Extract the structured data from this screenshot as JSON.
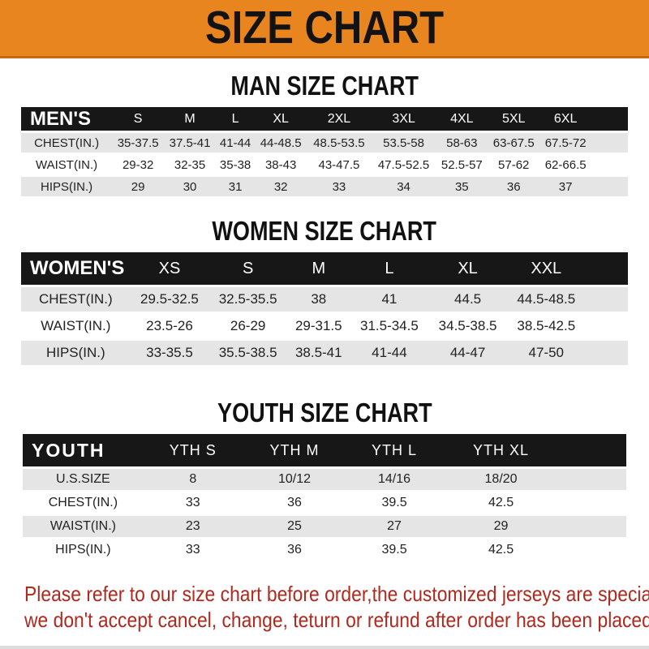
{
  "banner": {
    "title": "SIZE CHART"
  },
  "sections": [
    {
      "id": "men",
      "title": "MAN SIZE CHART",
      "table": {
        "header_label": "MEN'S",
        "columns": [
          "S",
          "M",
          "L",
          "XL",
          "2XL",
          "3XL",
          "4XL",
          "5XL",
          "6XL"
        ],
        "rows": [
          {
            "label": "CHEST(IN.)",
            "values": [
              "35-37.5",
              "37.5-41",
              "41-44",
              "44-48.5",
              "48.5-53.5",
              "53.5-58",
              "58-63",
              "63-67.5",
              "67.5-72"
            ]
          },
          {
            "label": "WAIST(IN.)",
            "values": [
              "29-32",
              "32-35",
              "35-38",
              "38-43",
              "43-47.5",
              "47.5-52.5",
              "52.5-57",
              "57-62",
              "62-66.5"
            ]
          },
          {
            "label": "HIPS(IN.)",
            "values": [
              "29",
              "30",
              "31",
              "32",
              "33",
              "34",
              "35",
              "36",
              "37"
            ]
          }
        ]
      }
    },
    {
      "id": "women",
      "title": "WOMEN SIZE CHART",
      "table": {
        "header_label": "WOMEN'S",
        "columns": [
          "XS",
          "S",
          "M",
          "L",
          "XL",
          "XXL"
        ],
        "rows": [
          {
            "label": "CHEST(IN.)",
            "values": [
              "29.5-32.5",
              "32.5-35.5",
              "38",
              "41",
              "44.5",
              "44.5-48.5"
            ]
          },
          {
            "label": "WAIST(IN.)",
            "values": [
              "23.5-26",
              "26-29",
              "29-31.5",
              "31.5-34.5",
              "34.5-38.5",
              "38.5-42.5"
            ]
          },
          {
            "label": "HIPS(IN.)",
            "values": [
              "33-35.5",
              "35.5-38.5",
              "38.5-41",
              "41-44",
              "44-47",
              "47-50"
            ]
          }
        ]
      }
    },
    {
      "id": "youth",
      "title": "YOUTH SIZE CHART",
      "table": {
        "header_label": "YOUTH",
        "columns": [
          "YTH S",
          "YTH M",
          "YTH L",
          "YTH XL"
        ],
        "rows": [
          {
            "label": "U.S.SIZE",
            "values": [
              "8",
              "10/12",
              "14/16",
              "18/20"
            ]
          },
          {
            "label": "CHEST(IN.)",
            "values": [
              "33",
              "36",
              "39.5",
              "42.5"
            ]
          },
          {
            "label": "WAIST(IN.)",
            "values": [
              "23",
              "25",
              "27",
              "29"
            ]
          },
          {
            "label": "HIPS(IN.)",
            "values": [
              "33",
              "36",
              "39.5",
              "42.5"
            ]
          }
        ]
      }
    }
  ],
  "footer": {
    "line1": "Please refer to our size chart before order,the customized jerseys are special products,",
    "line2": "we don't accept cancel, change, teturn or refund after order has been placed!"
  },
  "colors": {
    "banner_orange": "#E9851E",
    "banner_edge": "#C8690F",
    "header_bar_black": "#171717",
    "row_gray": "#E5E5E5",
    "note_red": "#B0291F"
  }
}
